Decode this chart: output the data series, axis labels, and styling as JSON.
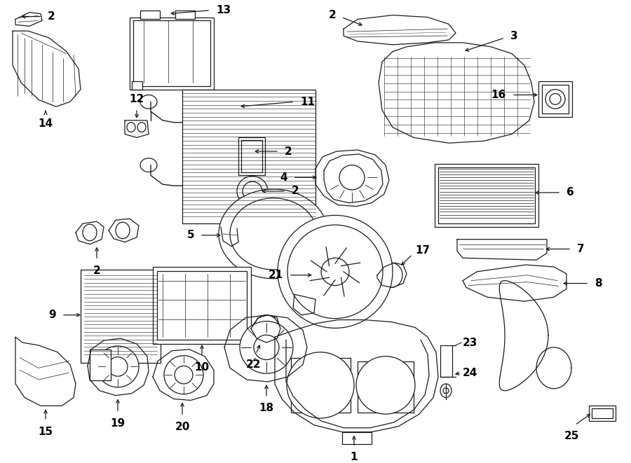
{
  "bg_color": "#ffffff",
  "line_color": "#1a1a1a",
  "lw": 0.9,
  "fontsize_label": 11,
  "components": [
    {
      "id": "2a",
      "type": "duct_tl"
    },
    {
      "id": "14",
      "type": "label"
    },
    {
      "id": "12",
      "type": "label"
    },
    {
      "id": "13",
      "type": "label"
    },
    {
      "id": "11",
      "type": "label"
    },
    {
      "id": "2b",
      "type": "label"
    },
    {
      "id": "4",
      "type": "label"
    },
    {
      "id": "5",
      "type": "label"
    },
    {
      "id": "2c",
      "type": "label"
    },
    {
      "id": "9",
      "type": "label"
    },
    {
      "id": "2d",
      "type": "label"
    },
    {
      "id": "2e",
      "type": "label"
    },
    {
      "id": "3",
      "type": "label"
    },
    {
      "id": "16",
      "type": "label"
    },
    {
      "id": "6",
      "type": "label"
    },
    {
      "id": "7",
      "type": "label"
    },
    {
      "id": "8",
      "type": "label"
    },
    {
      "id": "17",
      "type": "label"
    },
    {
      "id": "21",
      "type": "label"
    },
    {
      "id": "10",
      "type": "label"
    },
    {
      "id": "22",
      "type": "label"
    },
    {
      "id": "15",
      "type": "label"
    },
    {
      "id": "19",
      "type": "label"
    },
    {
      "id": "20",
      "type": "label"
    },
    {
      "id": "18",
      "type": "label"
    },
    {
      "id": "1",
      "type": "label"
    },
    {
      "id": "23",
      "type": "label"
    },
    {
      "id": "24",
      "type": "label"
    },
    {
      "id": "25",
      "type": "label"
    }
  ]
}
